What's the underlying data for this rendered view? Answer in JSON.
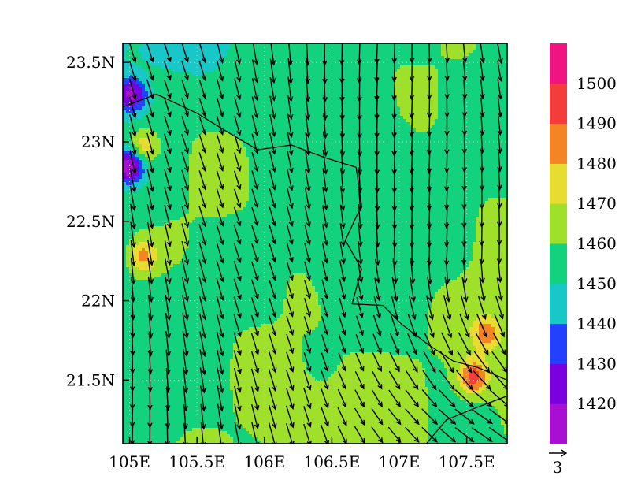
{
  "chart_data": {
    "type": "heatmap",
    "subtype": "filled-contour-with-wind-vectors",
    "title": "",
    "xlabel": "",
    "ylabel": "",
    "xlim": [
      104.95,
      107.8
    ],
    "ylim": [
      21.1,
      23.62
    ],
    "x_ticks": [
      105.0,
      105.5,
      106.0,
      106.5,
      107.0,
      107.5
    ],
    "x_tick_labels": [
      "105E",
      "105.5E",
      "106E",
      "106.5E",
      "107E",
      "107.5E"
    ],
    "y_ticks": [
      21.5,
      22.0,
      22.5,
      23.0,
      23.5
    ],
    "y_tick_labels": [
      "21.5N",
      "22N",
      "22.5N",
      "23N",
      "23.5N"
    ],
    "grid": "dotted",
    "colorbar": {
      "placement": "right",
      "levels": [
        1420,
        1430,
        1440,
        1450,
        1460,
        1470,
        1480,
        1490,
        1500
      ],
      "labels": [
        "1420",
        "1430",
        "1440",
        "1450",
        "1460",
        "1470",
        "1480",
        "1490",
        "1500"
      ],
      "colors": [
        "#a80fd2",
        "#7a00e0",
        "#2340ff",
        "#18c8c8",
        "#12d27e",
        "#9fe02a",
        "#e8dc30",
        "#f58424",
        "#f53c3c",
        "#f01482"
      ]
    },
    "vector_reference": {
      "magnitude": 3,
      "label": "3"
    },
    "wind_flow": "predominantly north-to-south, turning southeast in the southeast of the domain",
    "features": [
      {
        "label": "1420",
        "lon": 105.0,
        "lat": 22.85,
        "note": "low center west edge"
      },
      {
        "label": "1430",
        "lon": 105.02,
        "lat": 23.3,
        "note": "low near northwest corner"
      },
      {
        "label": "1480",
        "lon": 105.1,
        "lat": 22.28,
        "note": "high west edge"
      },
      {
        "label": "1480",
        "lon": 105.1,
        "lat": 22.97,
        "note": "high northwest"
      },
      {
        "label": "1490",
        "lon": 107.55,
        "lat": 21.52,
        "note": "high southeast"
      },
      {
        "label": "1480",
        "lon": 107.65,
        "lat": 21.8,
        "note": "high southeast edge"
      }
    ]
  }
}
